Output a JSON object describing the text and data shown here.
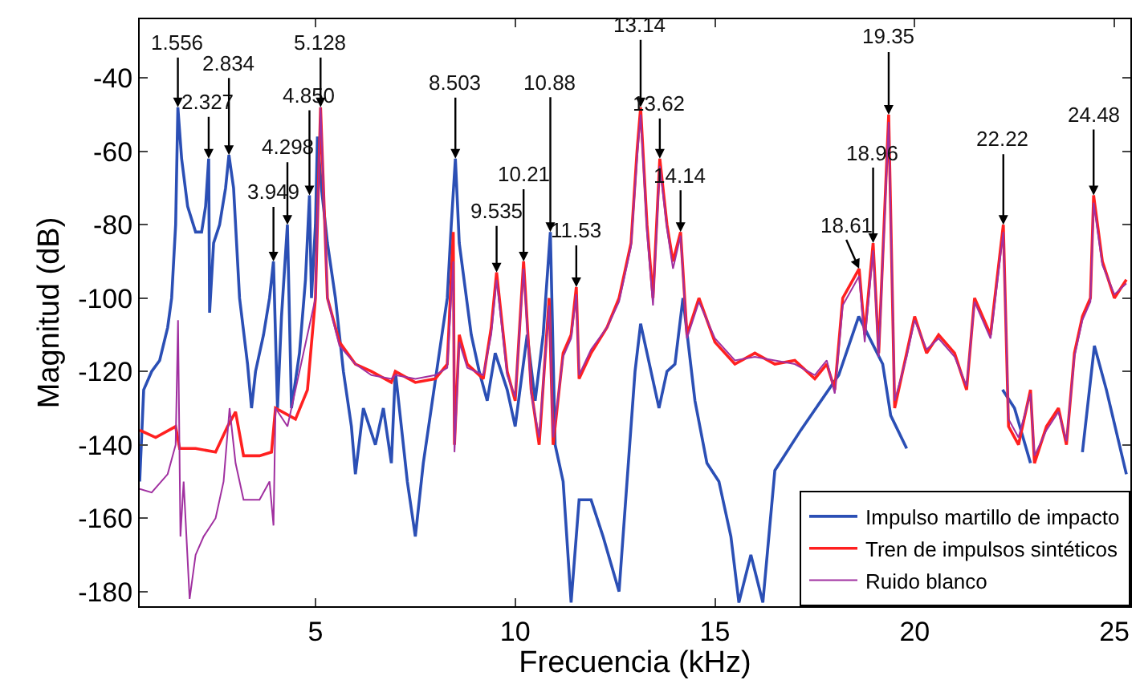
{
  "chart_data": {
    "type": "line",
    "xlabel": "Frecuencia (kHz)",
    "ylabel": "Magnitud (dB)",
    "xlim": [
      0.6,
      25.4
    ],
    "ylim": [
      -184,
      -24
    ],
    "xticks": [
      5,
      10,
      15,
      20,
      25
    ],
    "yticks": [
      -180,
      -160,
      -140,
      -120,
      -100,
      -80,
      -60,
      -40
    ],
    "grid": false,
    "legend": "bottom right",
    "marker": "none",
    "line_style": "solid",
    "series": [
      {
        "name": "Impulso martillo de impacto",
        "color": "#2b4fb5",
        "x": [
          0.6,
          0.7,
          0.9,
          1.1,
          1.3,
          1.4,
          1.5,
          1.556,
          1.65,
          1.8,
          2.0,
          2.15,
          2.25,
          2.327,
          2.35,
          2.45,
          2.6,
          2.75,
          2.834,
          2.95,
          3.1,
          3.3,
          3.4,
          3.5,
          3.7,
          3.85,
          3.949,
          4.05,
          4.15,
          4.298,
          4.4,
          4.6,
          4.75,
          4.85,
          4.9,
          5.0,
          5.05,
          5.15,
          5.3,
          5.5,
          5.7,
          5.9,
          6.0,
          6.2,
          6.5,
          6.7,
          6.9,
          7.0,
          7.3,
          7.5,
          7.7,
          7.9,
          8.1,
          8.3,
          8.4,
          8.503,
          8.6,
          8.9,
          9.1,
          9.3,
          9.5,
          9.8,
          10.0,
          10.3,
          10.5,
          10.7,
          10.88,
          11.0,
          11.2,
          11.4,
          11.6,
          11.9,
          12.2,
          12.6,
          12.8,
          13.0,
          13.14,
          13.4,
          13.6,
          13.8,
          14.0,
          14.2,
          14.5,
          14.8,
          15.1,
          15.4,
          15.6,
          15.9,
          16.2,
          16.5,
          17.15,
          18.1,
          18.6,
          19.2,
          19.4,
          19.8,
          20.0,
          22.0,
          22.2,
          22.5,
          22.9,
          23.0,
          24.0,
          24.2,
          24.5,
          24.8,
          25.3
        ],
        "values": [
          -150,
          -125,
          -120,
          -117,
          -108,
          -100,
          -80,
          -48,
          -62,
          -75,
          -82,
          -82,
          -75,
          -62,
          -104,
          -85,
          -80,
          -70,
          -61,
          -70,
          -100,
          -118,
          -130,
          -120,
          -110,
          -100,
          -90,
          -130,
          -105,
          -80,
          -130,
          -115,
          -95,
          -72,
          -100,
          -80,
          -56,
          -70,
          -85,
          -100,
          -120,
          -135,
          -148,
          -130,
          -140,
          -130,
          -145,
          -120,
          -150,
          -165,
          -145,
          -130,
          -115,
          -100,
          -80,
          -62,
          -85,
          -110,
          -120,
          -128,
          -115,
          -125,
          -135,
          -110,
          -128,
          -110,
          -82,
          -140,
          -150,
          -183,
          -155,
          -155,
          -165,
          -180,
          -150,
          -120,
          -107,
          -120,
          -130,
          -120,
          -118,
          -100,
          -128,
          -145,
          -150,
          -165,
          -183,
          -170,
          -183,
          -147,
          -136,
          -121,
          -105,
          -118,
          -132,
          -141,
          null,
          null,
          -125,
          -130,
          -145,
          null,
          null,
          -142,
          -113,
          -125,
          -148
        ]
      },
      {
        "name": "Tren de impulsos sintéticos",
        "color": "#ff2020",
        "x": [
          0.6,
          1.0,
          1.5,
          1.6,
          2.0,
          2.5,
          2.8,
          3.0,
          3.2,
          3.6,
          3.9,
          4.0,
          4.5,
          4.8,
          5.0,
          5.128,
          5.3,
          5.6,
          6.0,
          6.4,
          6.9,
          7.0,
          7.5,
          8.0,
          8.3,
          8.45,
          8.48,
          8.6,
          8.8,
          9.2,
          9.4,
          9.535,
          9.8,
          10.0,
          10.21,
          10.4,
          10.6,
          10.85,
          10.95,
          11.2,
          11.4,
          11.53,
          11.6,
          11.9,
          12.3,
          12.6,
          12.9,
          13.05,
          13.14,
          13.3,
          13.45,
          13.62,
          13.8,
          13.95,
          14.14,
          14.3,
          14.6,
          15.0,
          15.5,
          16.0,
          16.5,
          17.0,
          17.5,
          17.8,
          18.0,
          18.2,
          18.61,
          18.75,
          18.96,
          19.1,
          19.35,
          19.5,
          19.8,
          20.0,
          20.3,
          20.6,
          21.0,
          21.3,
          21.5,
          21.9,
          22.22,
          22.35,
          22.6,
          22.9,
          23.0,
          23.3,
          23.6,
          23.8,
          24.0,
          24.2,
          24.4,
          24.48,
          24.7,
          25.0,
          25.3
        ],
        "values": [
          -136,
          -138,
          -135,
          -141,
          -141,
          -142,
          -135,
          -131,
          -143,
          -143,
          -142,
          -130,
          -133,
          -125,
          -100,
          -48,
          -100,
          -112,
          -118,
          -120,
          -123,
          -120,
          -123,
          -122,
          -118,
          -82,
          -140,
          -110,
          -118,
          -122,
          -108,
          -93,
          -120,
          -128,
          -90,
          -125,
          -140,
          -100,
          -140,
          -115,
          -110,
          -97,
          -122,
          -115,
          -108,
          -100,
          -85,
          -60,
          -48,
          -80,
          -100,
          -62,
          -80,
          -90,
          -82,
          -110,
          -100,
          -112,
          -118,
          -115,
          -118,
          -117,
          -122,
          -118,
          -125,
          -100,
          -92,
          -110,
          -85,
          -115,
          -50,
          -130,
          -115,
          -105,
          -115,
          -110,
          -115,
          -125,
          -100,
          -110,
          -80,
          -135,
          -140,
          -125,
          -145,
          -135,
          -130,
          -140,
          -115,
          -105,
          -100,
          -72,
          -90,
          -100,
          -95
        ]
      },
      {
        "name": "Ruido blanco",
        "color": "#a030a0",
        "x": [
          0.6,
          0.9,
          1.3,
          1.5,
          1.56,
          1.62,
          1.7,
          1.85,
          2.0,
          2.2,
          2.5,
          2.7,
          2.85,
          3.0,
          3.2,
          3.6,
          3.85,
          3.95,
          4.0,
          4.3,
          4.7,
          5.0,
          5.128,
          5.3,
          5.6,
          6.0,
          6.4,
          6.9,
          7.0,
          7.5,
          8.0,
          8.3,
          8.45,
          8.48,
          8.6,
          8.8,
          9.2,
          9.4,
          9.535,
          9.8,
          10.0,
          10.21,
          10.4,
          10.6,
          10.85,
          10.95,
          11.2,
          11.4,
          11.53,
          11.6,
          11.9,
          12.3,
          12.6,
          12.9,
          13.05,
          13.14,
          13.3,
          13.45,
          13.62,
          13.8,
          13.95,
          14.14,
          14.3,
          14.6,
          15.0,
          15.5,
          16.0,
          16.5,
          17.0,
          17.5,
          17.8,
          18.0,
          18.2,
          18.61,
          18.75,
          18.96,
          19.1,
          19.35,
          19.5,
          19.8,
          20.0,
          20.3,
          20.6,
          21.0,
          21.3,
          21.5,
          21.9,
          22.22,
          22.35,
          22.6,
          22.9,
          23.0,
          23.3,
          23.6,
          23.8,
          24.0,
          24.2,
          24.4,
          24.48,
          24.7,
          25.0,
          25.3
        ],
        "values": [
          -152,
          -153,
          -148,
          -140,
          -106,
          -165,
          -150,
          -182,
          -170,
          -165,
          -160,
          -150,
          -130,
          -145,
          -155,
          -155,
          -150,
          -162,
          -130,
          -135,
          -115,
          -100,
          -48,
          -100,
          -113,
          -118,
          -121,
          -122,
          -121,
          -122,
          -121,
          -119,
          -90,
          -142,
          -112,
          -119,
          -121,
          -110,
          -95,
          -121,
          -127,
          -92,
          -126,
          -138,
          -102,
          -138,
          -116,
          -111,
          -99,
          -121,
          -114,
          -108,
          -101,
          -86,
          -62,
          -50,
          -82,
          -102,
          -64,
          -81,
          -92,
          -83,
          -111,
          -101,
          -111,
          -117,
          -116,
          -117,
          -118,
          -121,
          -117,
          -126,
          -102,
          -94,
          -112,
          -87,
          -116,
          -52,
          -128,
          -116,
          -106,
          -114,
          -111,
          -116,
          -124,
          -101,
          -111,
          -82,
          -133,
          -138,
          -126,
          -143,
          -136,
          -131,
          -139,
          -116,
          -106,
          -101,
          -74,
          -91,
          -99,
          -96
        ]
      }
    ],
    "annotations": [
      {
        "text": "1.556",
        "x": 1.556,
        "y": -48
      },
      {
        "text": "2.327",
        "x": 2.327,
        "y": -62
      },
      {
        "text": "2.834",
        "x": 2.834,
        "y": -61
      },
      {
        "text": "3.949",
        "x": 3.949,
        "y": -90
      },
      {
        "text": "4.298",
        "x": 4.298,
        "y": -80
      },
      {
        "text": "4.850",
        "x": 4.85,
        "y": -72
      },
      {
        "text": "5.128",
        "x": 5.128,
        "y": -48
      },
      {
        "text": "8.503",
        "x": 8.503,
        "y": -62
      },
      {
        "text": "9.535",
        "x": 9.535,
        "y": -93
      },
      {
        "text": "10.21",
        "x": 10.21,
        "y": -90
      },
      {
        "text": "10.88",
        "x": 10.88,
        "y": -82
      },
      {
        "text": "11.53",
        "x": 11.53,
        "y": -97
      },
      {
        "text": "13.14",
        "x": 13.14,
        "y": -48
      },
      {
        "text": "13.62",
        "x": 13.62,
        "y": -62
      },
      {
        "text": "14.14",
        "x": 14.14,
        "y": -82
      },
      {
        "text": "18.61",
        "x": 18.61,
        "y": -92
      },
      {
        "text": "18.96",
        "x": 18.96,
        "y": -85
      },
      {
        "text": "19.35",
        "x": 19.35,
        "y": -50
      },
      {
        "text": "22.22",
        "x": 22.22,
        "y": -80
      },
      {
        "text": "24.48",
        "x": 24.48,
        "y": -72
      }
    ]
  }
}
